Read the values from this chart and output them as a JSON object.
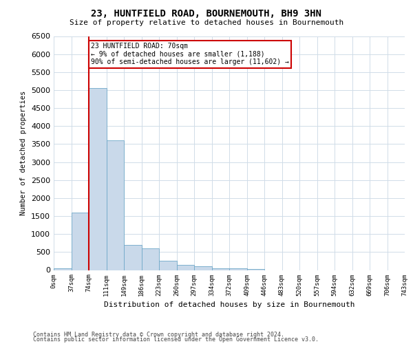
{
  "title": "23, HUNTFIELD ROAD, BOURNEMOUTH, BH9 3HN",
  "subtitle": "Size of property relative to detached houses in Bournemouth",
  "xlabel": "Distribution of detached houses by size in Bournemouth",
  "ylabel": "Number of detached properties",
  "footer1": "Contains HM Land Registry data © Crown copyright and database right 2024.",
  "footer2": "Contains public sector information licensed under the Open Government Licence v3.0.",
  "annotation_line0": "23 HUNTFIELD ROAD: 70sqm",
  "annotation_line1": "← 9% of detached houses are smaller (1,188)",
  "annotation_line2": "90% of semi-detached houses are larger (11,602) →",
  "bar_color": "#c9d9ea",
  "bar_edge_color": "#6fa8c8",
  "grid_color": "#d0dce8",
  "red_line_color": "#cc0000",
  "annotation_box_facecolor": "#ffffff",
  "annotation_box_edgecolor": "#cc0000",
  "background_color": "#ffffff",
  "bins": [
    "0sqm",
    "37sqm",
    "74sqm",
    "111sqm",
    "149sqm",
    "186sqm",
    "223sqm",
    "260sqm",
    "297sqm",
    "334sqm",
    "372sqm",
    "409sqm",
    "446sqm",
    "483sqm",
    "520sqm",
    "557sqm",
    "594sqm",
    "632sqm",
    "669sqm",
    "706sqm",
    "743sqm"
  ],
  "bar_values": [
    50,
    1600,
    5050,
    3600,
    700,
    600,
    250,
    150,
    100,
    50,
    50,
    30,
    0,
    0,
    0,
    0,
    0,
    0,
    0,
    0
  ],
  "red_line_bin_index": 2,
  "ylim": [
    0,
    6500
  ],
  "yticks": [
    0,
    500,
    1000,
    1500,
    2000,
    2500,
    3000,
    3500,
    4000,
    4500,
    5000,
    5500,
    6000,
    6500
  ]
}
